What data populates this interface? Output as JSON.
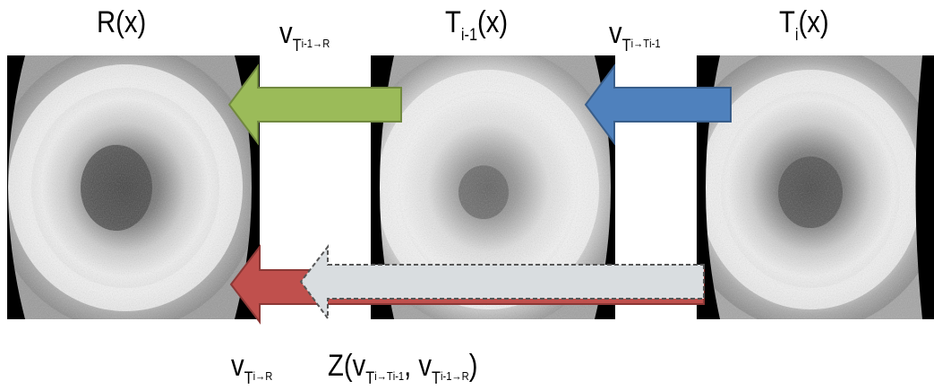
{
  "panels": [
    {
      "id": "reference",
      "label_main": "R(x)",
      "label_sub": ""
    },
    {
      "id": "previous",
      "label_main": "T",
      "label_sub": "i-1",
      "label_tail": "(x)"
    },
    {
      "id": "current",
      "label_main": "T",
      "label_sub": "i",
      "label_tail": "(x)"
    }
  ],
  "arrows": {
    "top_left": {
      "color": "#9bbb59",
      "label_v": "v",
      "label_sub_a": "T",
      "label_sub_b": "i-1→R"
    },
    "top_right": {
      "color": "#4f81bd",
      "label_v": "v",
      "label_sub_a": "T",
      "label_sub_b": "i→T",
      "label_sub_c": "i-1"
    },
    "bottom_red": {
      "color": "#c0504d",
      "label_v": "v",
      "label_sub_a": "T",
      "label_sub_b": "i→R"
    },
    "bottom_gray": {
      "color": "#d9dde0",
      "label": "Z(v",
      "label_p1a": "T",
      "label_p1b": "i→T",
      "label_p1c": "i-1",
      "label_mid": ", v",
      "label_p2a": "T",
      "label_p2b": "i-1→R",
      "label_end": ")"
    }
  }
}
